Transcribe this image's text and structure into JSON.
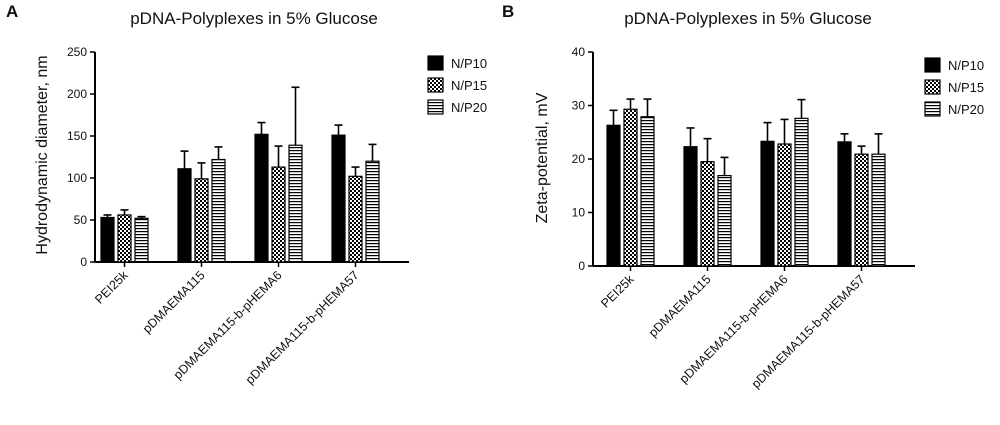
{
  "chart_data": [
    {
      "type": "bar",
      "panel": "A",
      "title": "pDNA-Polyplexes in 5% Glucose",
      "xlabel": "",
      "ylabel": "Hydrodynamic diameter, nm",
      "ylim": [
        0,
        250
      ],
      "yticks": [
        "0",
        "50",
        "100",
        "150",
        "200",
        "250"
      ],
      "categories": [
        "PEI25k",
        "pDMAEMA115",
        "pDMAEMA115-b-pHEMA6",
        "pDMAEMA115-b-pHEMA57"
      ],
      "legend_position": "top-right",
      "grid": false,
      "series": [
        {
          "name": "N/P10",
          "pattern": "solid",
          "values": [
            53,
            111,
            152,
            151
          ],
          "errors": [
            3,
            21,
            14,
            12
          ]
        },
        {
          "name": "N/P15",
          "pattern": "checker",
          "values": [
            56,
            99,
            113,
            102
          ],
          "errors": [
            6,
            19,
            25,
            11
          ]
        },
        {
          "name": "N/P20",
          "pattern": "hstripe",
          "values": [
            52,
            122,
            139,
            120
          ],
          "errors": [
            2,
            15,
            69,
            20
          ]
        }
      ]
    },
    {
      "type": "bar",
      "panel": "B",
      "title": "pDNA-Polyplexes in 5% Glucose",
      "xlabel": "",
      "ylabel": "Zeta-potential, mV",
      "ylim": [
        0,
        40
      ],
      "yticks": [
        "0",
        "10",
        "20",
        "30",
        "40"
      ],
      "categories": [
        "PEI25k",
        "pDMAEMA115",
        "pDMAEMA115-b-pHEMA6",
        "pDMAEMA115-b-pHEMA57"
      ],
      "legend_position": "top-right",
      "grid": false,
      "series": [
        {
          "name": "N/P10",
          "pattern": "solid",
          "values": [
            26.3,
            22.3,
            23.3,
            23.2
          ],
          "errors": [
            2.8,
            3.5,
            3.5,
            1.5
          ]
        },
        {
          "name": "N/P15",
          "pattern": "checker",
          "values": [
            29.3,
            19.5,
            22.8,
            20.9
          ],
          "errors": [
            1.9,
            4.3,
            4.6,
            1.5
          ]
        },
        {
          "name": "N/P20",
          "pattern": "hstripe",
          "values": [
            27.9,
            16.9,
            27.6,
            20.9
          ],
          "errors": [
            3.3,
            3.4,
            3.5,
            3.8
          ]
        }
      ]
    }
  ],
  "colors": {
    "bar_fill": "#000000",
    "bar_bg": "#ffffff",
    "axis": "#000000"
  }
}
